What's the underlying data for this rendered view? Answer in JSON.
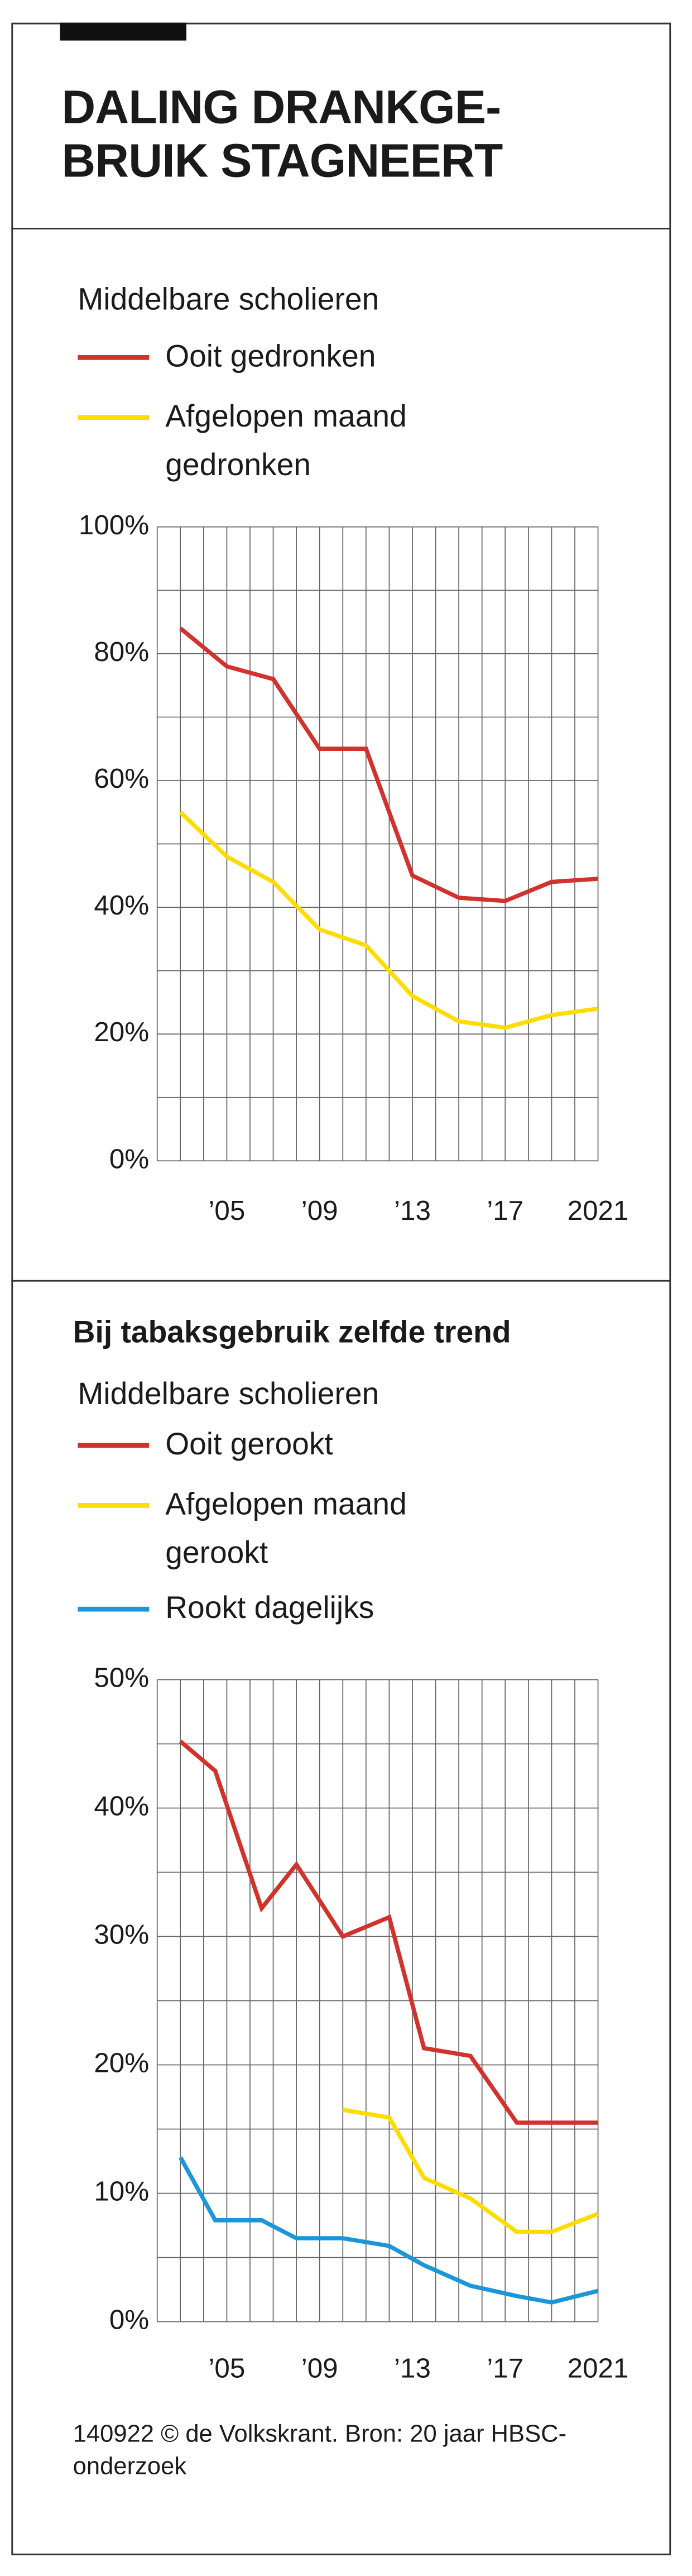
{
  "header": {
    "title": [
      "DALING DRANKGE-",
      "BRUIK STAGNEERT"
    ]
  },
  "chart_data": [
    {
      "type": "line",
      "subtitle": "Middelbare scholieren",
      "x": [
        2003,
        2005,
        2007,
        2009,
        2011,
        2013,
        2015,
        2017,
        2019,
        2021
      ],
      "series": [
        {
          "name": "Ooit gedronken",
          "color": "#d2322d",
          "values": [
            84,
            78,
            76,
            65,
            65,
            45,
            41.5,
            41,
            44,
            44.5
          ]
        },
        {
          "name": "Afgelopen maand gedronken",
          "color": "#ffdc00",
          "values": [
            55,
            48,
            44,
            36.5,
            34,
            26,
            22,
            21,
            23,
            24
          ]
        }
      ],
      "xlim": [
        2002,
        2021
      ],
      "xticks": [
        {
          "value": 2005,
          "label": "’05"
        },
        {
          "value": 2009,
          "label": "’09"
        },
        {
          "value": 2013,
          "label": "’13"
        },
        {
          "value": 2017,
          "label": "’17"
        },
        2021
      ],
      "ylim": [
        0,
        100
      ],
      "yticks": [
        {
          "value": 0,
          "label": "0%"
        },
        {
          "value": 20,
          "label": "20%"
        },
        {
          "value": 40,
          "label": "40%"
        },
        {
          "value": 60,
          "label": "60%"
        },
        {
          "value": 80,
          "label": "80%"
        },
        {
          "value": 100,
          "label": "100%"
        }
      ],
      "grid": true
    },
    {
      "type": "line",
      "title": "Bij tabaksgebruik zelfde trend",
      "subtitle": "Middelbare scholieren",
      "x": [
        2003,
        2004.5,
        2006.5,
        2008,
        2010,
        2012,
        2013.5,
        2015.5,
        2017.5,
        2019,
        2021
      ],
      "series": [
        {
          "name": "Ooit gerookt",
          "color": "#d2322d",
          "values": [
            45.2,
            42.9,
            32.2,
            35.6,
            30,
            31.5,
            21.3,
            20.7,
            15.5,
            15.5,
            15.5
          ]
        },
        {
          "name": "Afgelopen maand gerookt",
          "color": "#ffdc00",
          "values": [
            null,
            null,
            null,
            null,
            16.5,
            15.9,
            11.2,
            9.6,
            7,
            7,
            8.4
          ]
        },
        {
          "name": "Rookt dagelijks",
          "color": "#1b96d8",
          "values": [
            12.8,
            7.9,
            7.9,
            6.5,
            6.5,
            5.9,
            4.4,
            2.8,
            2,
            1.5,
            2.4
          ]
        }
      ],
      "xlim": [
        2002,
        2021
      ],
      "xticks": [
        {
          "value": 2005,
          "label": "’05"
        },
        {
          "value": 2009,
          "label": "’09"
        },
        {
          "value": 2013,
          "label": "’13"
        },
        {
          "value": 2017,
          "label": "’17"
        },
        2021
      ],
      "ylim": [
        0,
        50
      ],
      "yticks": [
        {
          "value": 0,
          "label": "0%"
        },
        {
          "value": 10,
          "label": "10%"
        },
        {
          "value": 20,
          "label": "20%"
        },
        {
          "value": 30,
          "label": "30%"
        },
        {
          "value": 40,
          "label": "40%"
        },
        {
          "value": 50,
          "label": "50%"
        }
      ],
      "grid": true
    }
  ],
  "source": [
    "140922 © de Volkskrant. Bron: 20 jaar HBSC-",
    "onderzoek"
  ]
}
